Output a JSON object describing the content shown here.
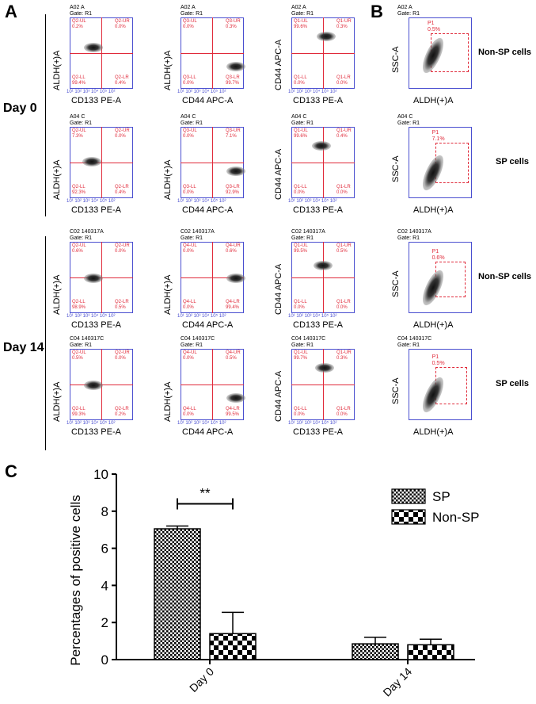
{
  "panels": {
    "A": "A",
    "B": "B",
    "C": "C"
  },
  "days": [
    "Day 0",
    "Day 14"
  ],
  "row_headers": [
    [
      "A02 A\nGate: R1",
      "A02 A\nGate: R1",
      "A02 A\nGate: R1"
    ],
    [
      "A04 C\nGate: R1",
      "A04 C\nGate: R1",
      "A04 C\nGate: R1"
    ],
    [
      "C02 140317A\nGate: R1",
      "C02 140317A\nGate: R1",
      "C02 140317A\nGate: R1"
    ],
    [
      "C04 140317C\nGate: R1",
      "C04 140317C\nGate: R1",
      "C04 140317C\nGate: R1"
    ]
  ],
  "quadrant_plots": {
    "x_labels": [
      "CD133 PE-A",
      "CD44 APC-A",
      "CD133 PE-A"
    ],
    "y_labels": [
      "ALDH(+)A",
      "ALDH(+)A",
      "CD44 APC-A"
    ],
    "tick_text": "10¹ 10² 10³ 10⁴ 10⁵ 10²",
    "rows": [
      [
        {
          "ul": "Q2-UL",
          "ulv": "0.2%",
          "ur": "Q2-UR",
          "urv": "0.0%",
          "ll": "Q2-LL",
          "llv": "99.4%",
          "lr": "Q2-LR",
          "lrv": "0.4%"
        },
        {
          "ul": "Q3-UL",
          "ulv": "0.0%",
          "ur": "Q3-UR",
          "urv": "0.3%",
          "ll": "Q3-LL",
          "llv": "0.0%",
          "lr": "Q3-LR",
          "lrv": "99.7%"
        },
        {
          "ul": "Q1-UL",
          "ulv": "99.6%",
          "ur": "Q1-UR",
          "urv": "0.3%",
          "ll": "Q1-LL",
          "llv": "0.0%",
          "lr": "Q1-LR",
          "lrv": "0.0%"
        }
      ],
      [
        {
          "ul": "Q2-UL",
          "ulv": "7.3%",
          "ur": "Q2-UR",
          "urv": "0.0%",
          "ll": "Q2-LL",
          "llv": "92.3%",
          "lr": "Q2-LR",
          "lrv": "0.4%"
        },
        {
          "ul": "Q3-UL",
          "ulv": "0.0%",
          "ur": "Q3-UR",
          "urv": "7.1%",
          "ll": "Q3-LL",
          "llv": "0.0%",
          "lr": "Q3-LR",
          "lrv": "92.9%"
        },
        {
          "ul": "Q1-UL",
          "ulv": "99.6%",
          "ur": "Q1-UR",
          "urv": "0.4%",
          "ll": "Q1-LL",
          "llv": "0.0%",
          "lr": "Q1-LR",
          "lrv": "0.0%"
        }
      ],
      [
        {
          "ul": "Q2-UL",
          "ulv": "0.6%",
          "ur": "Q2-UR",
          "urv": "0.0%",
          "ll": "Q2-LL",
          "llv": "98.9%",
          "lr": "Q2-LR",
          "lrv": "0.5%"
        },
        {
          "ul": "Q4-UL",
          "ulv": "0.0%",
          "ur": "Q4-UR",
          "urv": "0.6%",
          "ll": "Q4-LL",
          "llv": "0.0%",
          "lr": "Q4-LR",
          "lrv": "99.4%"
        },
        {
          "ul": "Q1-UL",
          "ulv": "99.5%",
          "ur": "Q1-UR",
          "urv": "0.5%",
          "ll": "Q1-LL",
          "llv": "0.0%",
          "lr": "Q1-LR",
          "lrv": "0.0%"
        }
      ],
      [
        {
          "ul": "Q2-UL",
          "ulv": "0.5%",
          "ur": "Q2-UR",
          "urv": "0.0%",
          "ll": "Q2-LL",
          "llv": "99.3%",
          "lr": "Q2-LR",
          "lrv": "0.2%"
        },
        {
          "ul": "Q4-UL",
          "ulv": "0.0%",
          "ur": "Q4-UR",
          "urv": "0.5%",
          "ll": "Q4-LL",
          "llv": "0.0%",
          "lr": "Q4-LR",
          "lrv": "99.5%"
        },
        {
          "ul": "Q1-UL",
          "ulv": "99.7%",
          "ur": "Q1-UR",
          "urv": "0.3%",
          "ll": "Q1-LL",
          "llv": "0.0%",
          "lr": "Q1-LR",
          "lrv": "0.0%"
        }
      ]
    ]
  },
  "sp_plots": [
    {
      "head": "A02 A\nGate: R1",
      "gate": "P1",
      "pct": "0.5%",
      "cell": "Non-SP cells"
    },
    {
      "head": "A04 C\nGate: R1",
      "gate": "P1",
      "pct": "7.1%",
      "cell": "SP cells"
    },
    {
      "head": "C02 140317A\nGate: R1",
      "gate": "P1",
      "pct": "0.6%",
      "cell": "Non-SP cells"
    },
    {
      "head": "C04 140317C\nGate: R1",
      "gate": "P1",
      "pct": "0.5%",
      "cell": "SP cells"
    }
  ],
  "sp_axes": {
    "x": "ALDH(+)A",
    "y": "SSC-A"
  },
  "colors": {
    "gate_red": "#e02a3a",
    "axis_blue": "#4a4fd0"
  },
  "chart_data": {
    "type": "bar",
    "categories": [
      "Day 0",
      "Day 14"
    ],
    "series": [
      {
        "name": "SP",
        "values": [
          7.05,
          0.85
        ],
        "errors": [
          0.15,
          0.35
        ],
        "pattern": "checker-fine"
      },
      {
        "name": "Non-SP",
        "values": [
          1.4,
          0.8
        ],
        "errors": [
          1.15,
          0.3
        ],
        "pattern": "checker-coarse"
      }
    ],
    "ylabel": "Percentages of positive cells",
    "ylim": [
      0,
      10
    ],
    "yticks": [
      0,
      2,
      4,
      6,
      8,
      10
    ],
    "significance": {
      "label": "**",
      "between": [
        "SP Day 0",
        "Non-SP Day 0"
      ]
    },
    "legend_position": "top-right"
  }
}
